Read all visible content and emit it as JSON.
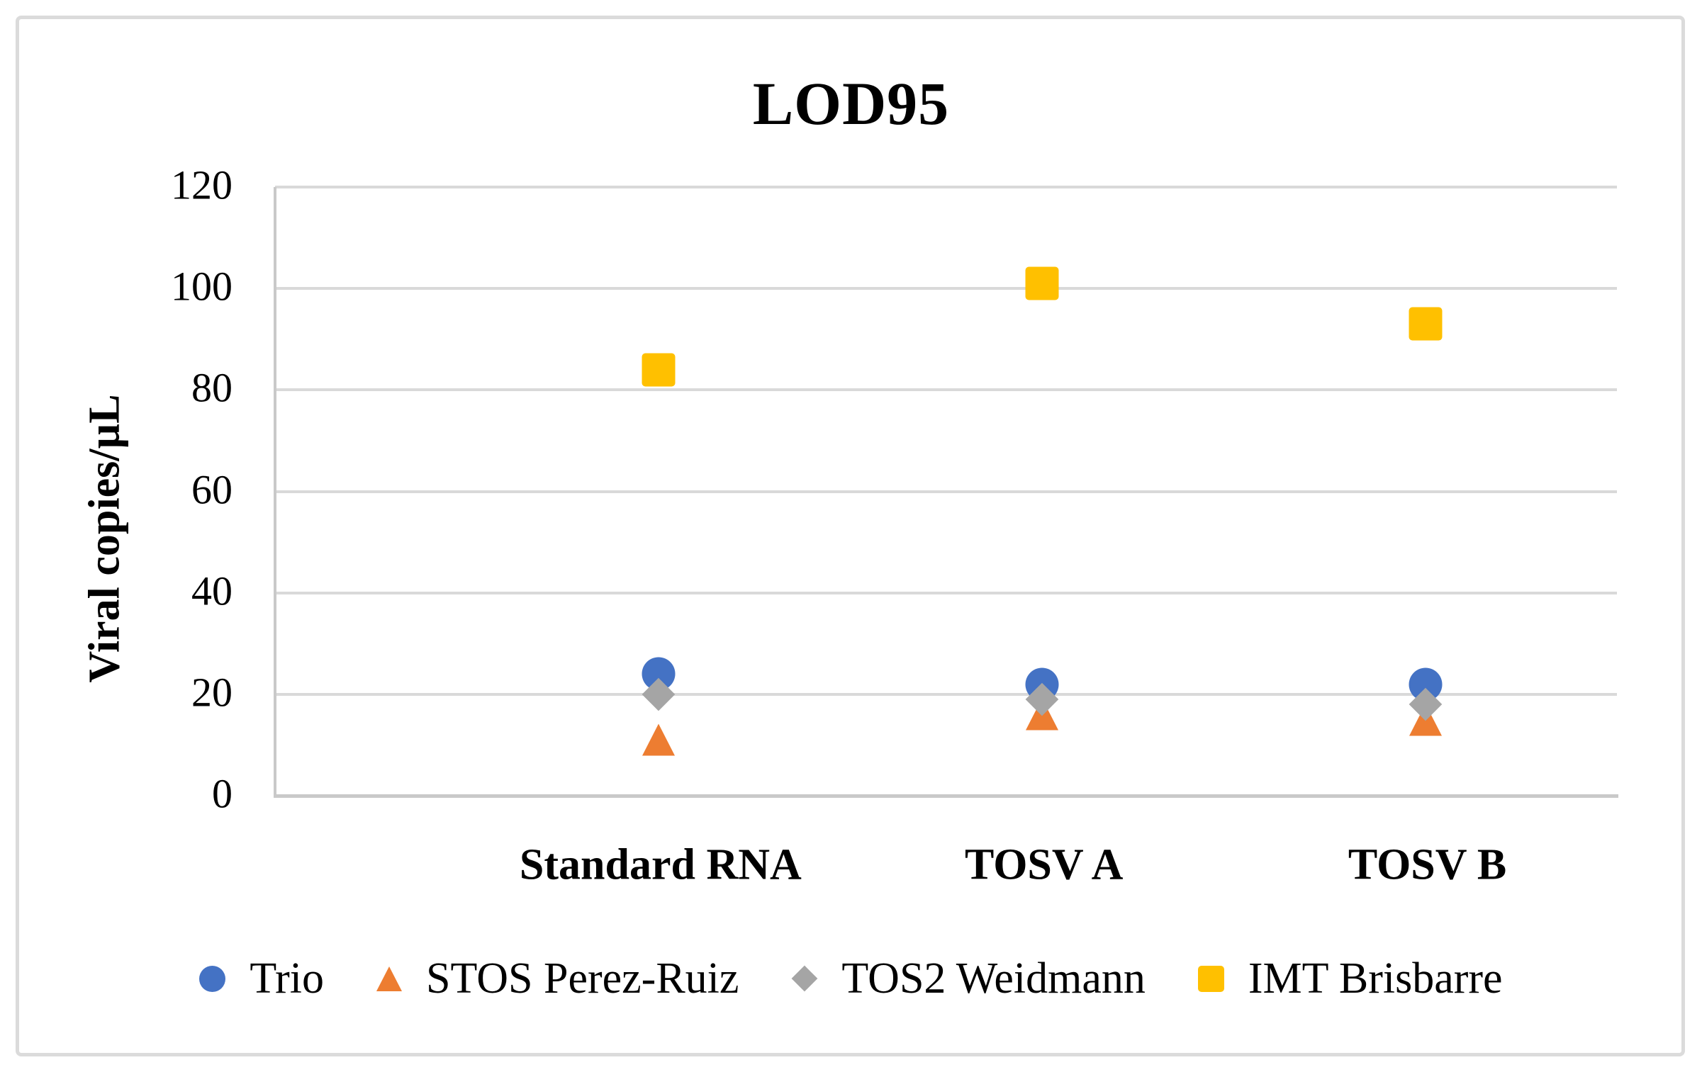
{
  "chart_data": {
    "type": "scatter",
    "title": "LOD95",
    "ylabel": "Viral copies/µL",
    "xlabel": "",
    "ylim": [
      0,
      120
    ],
    "y_tick_step": 20,
    "y_ticks": [
      "120",
      "100",
      "80",
      "60",
      "40",
      "20",
      "0"
    ],
    "grid": "horizontal-on",
    "legend_position": "bottom",
    "categories": [
      "Standard RNA",
      "TOSV A",
      "TOSV B"
    ],
    "series": [
      {
        "name": "Trio",
        "marker": "circle",
        "color": "#4472C4",
        "values": [
          24,
          22,
          22
        ]
      },
      {
        "name": "STOS Perez-Ruiz",
        "marker": "triangle",
        "color": "#ED7D31",
        "values": [
          11,
          16,
          15
        ]
      },
      {
        "name": "TOS2 Weidmann",
        "marker": "diamond",
        "color": "#A5A5A5",
        "values": [
          20,
          19,
          18
        ]
      },
      {
        "name": "IMT Brisbarre",
        "marker": "square",
        "color": "#FFC000",
        "values": [
          84,
          101,
          93
        ]
      }
    ]
  },
  "style_colors": {
    "gridline": "#d9d9d9",
    "axis_line": "#c9c9c9",
    "figure_border": "#dbdbdb",
    "text": "#000000"
  }
}
